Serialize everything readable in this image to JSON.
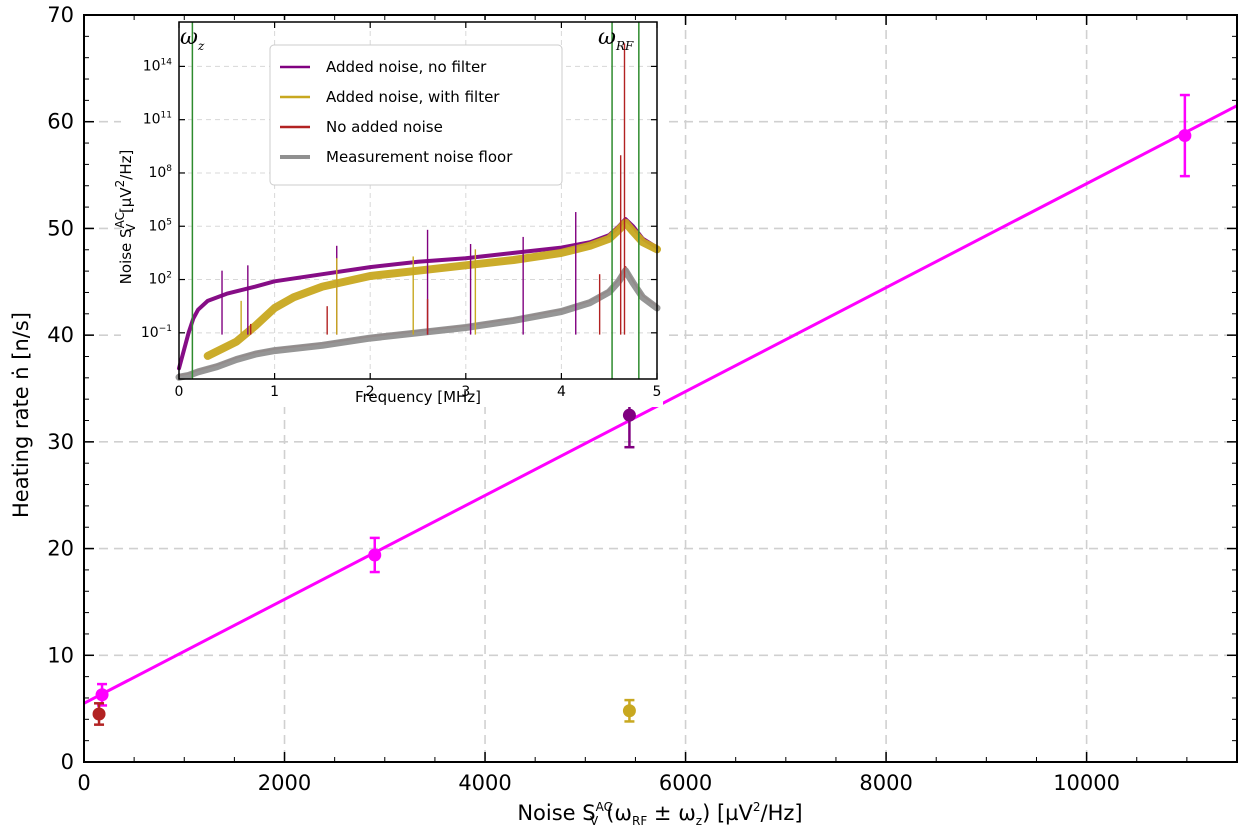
{
  "chart_data": [
    {
      "type": "scatter",
      "xlabel": "Noise S_V^AC(ω_RF ± ω_z) [µV²/Hz]",
      "ylabel": "Heating rate ṅ [n/s]",
      "xlim": [
        0,
        11500
      ],
      "ylim": [
        0,
        70
      ],
      "xticks": [
        0,
        2000,
        4000,
        6000,
        8000,
        10000
      ],
      "yticks": [
        0,
        10,
        20,
        30,
        40,
        50,
        60,
        70
      ],
      "grid": true,
      "series": [
        {
          "color": "#ff00ff",
          "x": [
            180,
            2900,
            10980
          ],
          "y": [
            6.3,
            19.4,
            58.7
          ],
          "err": [
            1.0,
            1.6,
            3.8
          ]
        },
        {
          "color": "#800080",
          "x": [
            5440
          ],
          "y": [
            32.5
          ],
          "err": [
            3.0
          ]
        },
        {
          "color": "#b22222",
          "x": [
            150
          ],
          "y": [
            4.5
          ],
          "err": [
            1.0
          ]
        },
        {
          "color": "#c8a820",
          "x": [
            5440
          ],
          "y": [
            4.8
          ],
          "err": [
            1.0
          ]
        }
      ],
      "fit": {
        "color": "#ff00ff",
        "x": [
          0,
          11500
        ],
        "y": [
          5.5,
          61.5
        ]
      }
    },
    {
      "type": "line",
      "xlabel": "Frequency [MHz]",
      "ylabel": "Noise S_V^AC [µV²/Hz]",
      "xlim": [
        0,
        5
      ],
      "yscale": "log",
      "ylim": [
        -3.6,
        16.5
      ],
      "xticks": [
        0,
        1,
        2,
        3,
        4,
        5
      ],
      "yticks": [
        -1,
        2,
        5,
        8,
        11,
        14
      ],
      "vlines": [
        0.14,
        4.53,
        4.81
      ],
      "vline_color": "#2e8b2e",
      "omega_labels": [
        "ω",
        "ω"
      ],
      "legend": {
        "position": "top-center",
        "entries": [
          {
            "label": "Added noise, no filter",
            "color": "#800080"
          },
          {
            "label": "Added noise, with filter",
            "color": "#c8a820"
          },
          {
            "label": "No added noise",
            "color": "#b22222"
          },
          {
            "label": "Measurement noise floor",
            "color": "#909090"
          }
        ]
      },
      "series": [
        {
          "color": "#800080",
          "x": [
            0,
            0.05,
            0.1,
            0.15,
            0.2,
            0.3,
            0.5,
            0.8,
            1.0,
            1.5,
            2.0,
            2.5,
            3.0,
            3.5,
            4.0,
            4.3,
            4.5,
            4.6,
            4.67,
            4.75,
            4.85,
            5.0
          ],
          "y": [
            -3.0,
            -2.0,
            -1.0,
            -0.2,
            0.3,
            0.8,
            1.2,
            1.6,
            1.9,
            2.3,
            2.7,
            3.0,
            3.2,
            3.5,
            3.8,
            4.1,
            4.5,
            5.0,
            5.4,
            5.0,
            4.3,
            3.8
          ]
        },
        {
          "color": "#c8a820",
          "x": [
            0.3,
            0.6,
            0.8,
            1.0,
            1.2,
            1.5,
            2.0,
            2.5,
            3.0,
            3.5,
            4.0,
            4.3,
            4.5,
            4.6,
            4.67,
            4.75,
            4.85,
            5.0
          ],
          "y": [
            -2.3,
            -1.5,
            -0.6,
            0.4,
            1.0,
            1.6,
            2.2,
            2.5,
            2.8,
            3.1,
            3.5,
            3.9,
            4.3,
            4.8,
            5.2,
            4.7,
            4.1,
            3.7
          ]
        },
        {
          "color": "#b22222",
          "x": [
            0,
            0.1,
            0.2,
            0.4,
            0.6,
            0.8,
            1.0,
            1.5,
            2.0,
            2.5,
            3.0,
            3.5,
            4.0,
            4.3,
            4.5,
            4.6,
            4.67,
            4.75,
            4.85,
            5.0
          ],
          "y": [
            -3.4,
            -3.3,
            -3.1,
            -2.8,
            -2.4,
            -2.1,
            -1.9,
            -1.6,
            -1.2,
            -0.9,
            -0.6,
            -0.2,
            0.3,
            0.8,
            1.4,
            2.0,
            2.7,
            1.9,
            1.1,
            0.5
          ]
        },
        {
          "color": "#909090",
          "x": [
            0,
            0.1,
            0.2,
            0.4,
            0.6,
            0.8,
            1.0,
            1.5,
            2.0,
            2.5,
            3.0,
            3.5,
            4.0,
            4.3,
            4.5,
            4.6,
            4.67,
            4.75,
            4.85,
            5.0
          ],
          "y": [
            -3.5,
            -3.4,
            -3.2,
            -2.9,
            -2.5,
            -2.2,
            -2.0,
            -1.7,
            -1.3,
            -1.0,
            -0.7,
            -0.3,
            0.2,
            0.7,
            1.3,
            1.9,
            2.5,
            1.8,
            1.0,
            0.4
          ]
        }
      ],
      "spikes": [
        {
          "color": "#800080",
          "x": [
            0.45,
            0.72,
            1.65,
            2.6,
            3.05,
            3.6,
            4.15
          ],
          "top": [
            2.5,
            2.8,
            3.9,
            4.8,
            4.0,
            4.4,
            5.8
          ]
        },
        {
          "color": "#c8a820",
          "x": [
            0.65,
            1.65,
            2.45,
            3.1
          ],
          "top": [
            0.8,
            3.2,
            3.3,
            3.7
          ]
        },
        {
          "color": "#b22222",
          "x": [
            0.75,
            1.55,
            2.6,
            4.4,
            4.62,
            4.66
          ],
          "top": [
            -0.5,
            0.5,
            0.9,
            2.3,
            9.0,
            15.3
          ]
        }
      ]
    }
  ]
}
